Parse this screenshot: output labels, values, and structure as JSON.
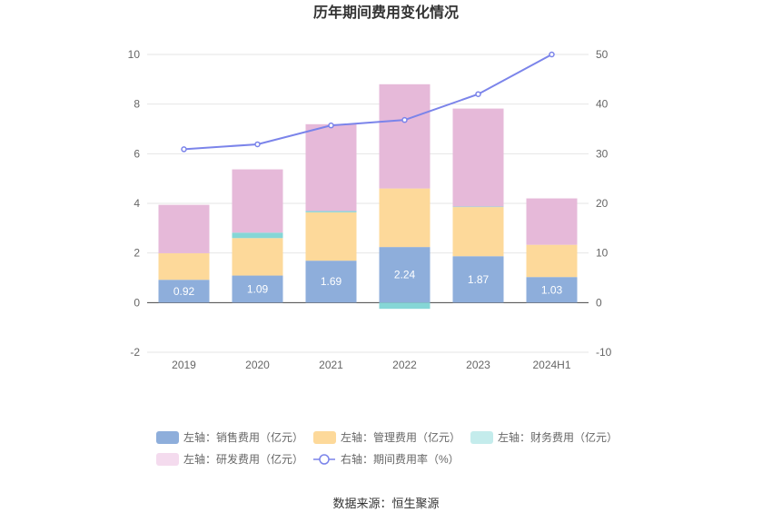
{
  "chart_data": {
    "type": "bar",
    "title": "历年期间费用变化情况",
    "categories": [
      "2019",
      "2020",
      "2021",
      "2022",
      "2023",
      "2024H1"
    ],
    "series": [
      {
        "name": "左轴：销售费用（亿元）",
        "axis": "left",
        "stack": true,
        "color": "#8eaedb",
        "values": [
          0.92,
          1.09,
          1.69,
          2.24,
          1.87,
          1.03
        ],
        "labels": [
          "0.92",
          "1.09",
          "1.69",
          "2.24",
          "1.87",
          "1.03"
        ]
      },
      {
        "name": "左轴：管理费用（亿元）",
        "axis": "left",
        "stack": true,
        "color": "#fdd99a",
        "values": [
          1.07,
          1.51,
          1.95,
          2.36,
          1.98,
          1.3
        ]
      },
      {
        "name": "左轴：财务费用（亿元）",
        "axis": "left",
        "stack": true,
        "color": "#85d6d6",
        "values": [
          0.0,
          0.22,
          0.05,
          -0.25,
          0.02,
          0.0
        ]
      },
      {
        "name": "左轴：研发费用（亿元）",
        "axis": "left",
        "stack": true,
        "color": "#e6b9d9",
        "values": [
          1.95,
          2.55,
          3.5,
          4.2,
          3.95,
          1.87
        ]
      },
      {
        "name": "右轴：期间费用率（%）",
        "axis": "right",
        "type": "line",
        "color": "#7b84ea",
        "values": [
          30.9,
          31.9,
          35.7,
          36.8,
          42.0,
          50.0
        ]
      }
    ],
    "left_axis": {
      "min": -2,
      "max": 10,
      "ticks": [
        "-2",
        "0",
        "2",
        "4",
        "6",
        "8",
        "10"
      ]
    },
    "right_axis": {
      "min": -10,
      "max": 50,
      "ticks": [
        "-10",
        "0",
        "10",
        "20",
        "30",
        "40",
        "50"
      ]
    },
    "legend_position": "bottom",
    "grid": true
  },
  "legend_colors": {
    "sales": "#8eaedb",
    "admin": "#fdd99a",
    "finance": "#c4ecec",
    "rd": "#f4dbee",
    "rate": "#7b84ea"
  },
  "source": "数据来源：恒生聚源"
}
